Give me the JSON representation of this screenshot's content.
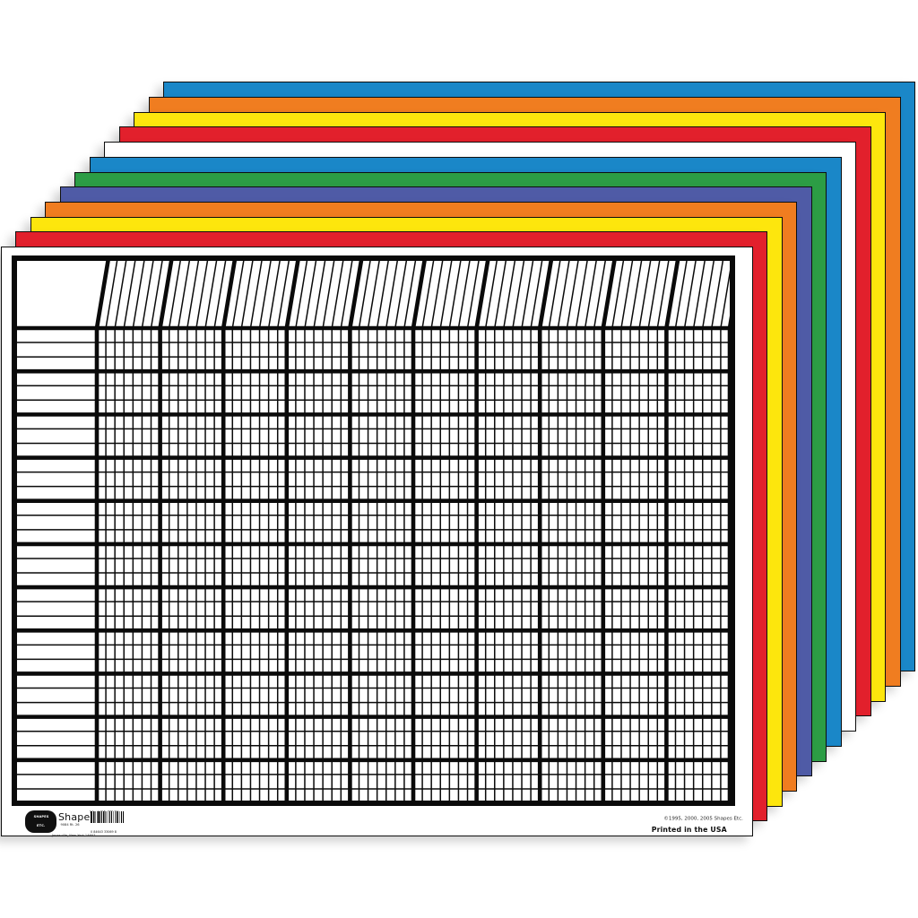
{
  "sheets": {
    "count": 12,
    "color_names_back_to_front": [
      "blue",
      "orange",
      "yellow",
      "red",
      "white",
      "blue",
      "green",
      "purple",
      "orange",
      "yellow",
      "red",
      "white"
    ],
    "colors_back_to_front": [
      "#1a87c8",
      "#f07d20",
      "#fde60d",
      "#e2202c",
      "#ffffff",
      "#1a87c8",
      "#2c9d45",
      "#4f5ba6",
      "#f07d20",
      "#fde60d",
      "#e2202c",
      "#ffffff"
    ]
  },
  "grid": {
    "line_color": "#0a0a0a",
    "has_name_column": true,
    "column_blocks": 10,
    "columns_per_block": 7,
    "total_columns": 70,
    "row_groups": 11,
    "rows_per_group": 3,
    "total_rows": 33,
    "title_box_text": ""
  },
  "footer": {
    "logo_line1": "SHAPES",
    "logo_line2": "ETC.",
    "brand": "Shapes Etc.",
    "address_line1": "9084 Rt. 26",
    "address_line2": "Jonesville, New York 14607",
    "sku_label": "SE-3306  White",
    "barcode_digits": "0 84643 33069 8",
    "copyright": "©1995, 2000, 2005 Shapes Etc.",
    "printed_in": "Printed in the USA"
  }
}
